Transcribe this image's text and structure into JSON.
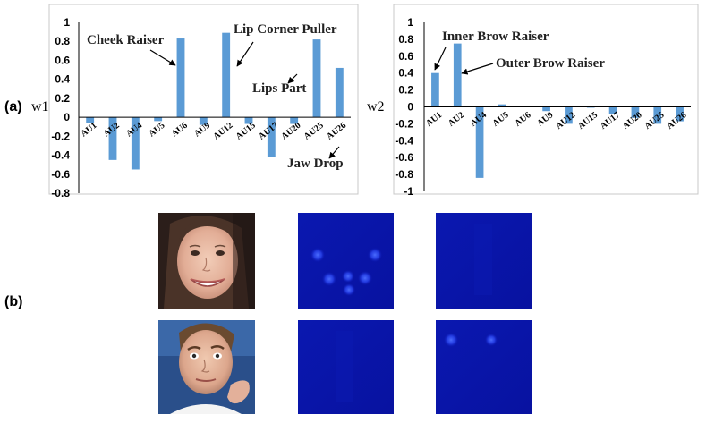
{
  "panel_labels": {
    "a": "(a)",
    "b": "(b)"
  },
  "chart_data": [
    {
      "type": "bar",
      "ylabel": "w1",
      "categories": [
        "AU1",
        "AU2",
        "AU4",
        "AU5",
        "AU6",
        "AU9",
        "AU12",
        "AU15",
        "AU17",
        "AU20",
        "AU25",
        "AU26"
      ],
      "values": [
        -0.06,
        -0.45,
        -0.55,
        -0.04,
        0.83,
        -0.08,
        0.89,
        -0.07,
        -0.42,
        -0.07,
        0.82,
        0.52
      ],
      "ylim": [
        -0.8,
        1
      ],
      "yticks": [
        "1",
        "0.8",
        "0.6",
        "0.4",
        "0.2",
        "0",
        "-0.2",
        "-0.4",
        "-0.6",
        "-0.8"
      ],
      "annotations": [
        {
          "text": "Cheek Raiser",
          "target": "AU6"
        },
        {
          "text": "Lip Corner Puller",
          "target": "AU12"
        },
        {
          "text": "Lips Part",
          "target": "AU25"
        },
        {
          "text": "Jaw Drop",
          "target": "AU26"
        }
      ]
    },
    {
      "type": "bar",
      "ylabel": "w2",
      "categories": [
        "AU1",
        "AU2",
        "AU4",
        "AU5",
        "AU6",
        "AU9",
        "AU12",
        "AU15",
        "AU17",
        "AU20",
        "AU25",
        "AU26"
      ],
      "values": [
        0.4,
        0.75,
        -0.84,
        0.03,
        0.0,
        -0.05,
        -0.2,
        -0.01,
        -0.08,
        -0.13,
        -0.2,
        -0.17
      ],
      "ylim": [
        -1,
        1
      ],
      "yticks": [
        "1",
        "0.8",
        "0.6",
        "0.4",
        "0.2",
        "0",
        "-0.2",
        "-0.4",
        "-0.6",
        "-0.8",
        "-1"
      ],
      "annotations": [
        {
          "text": "Inner Brow Raiser",
          "target": "AU1"
        },
        {
          "text": "Outer Brow Raiser",
          "target": "AU2"
        }
      ]
    }
  ],
  "images": [
    {
      "name": "smiling-face-photo",
      "kind": "photo"
    },
    {
      "name": "heatmap-row1-col1",
      "kind": "heatmap"
    },
    {
      "name": "heatmap-row1-col2",
      "kind": "heatmap"
    },
    {
      "name": "brow-raise-face-photo",
      "kind": "photo"
    },
    {
      "name": "heatmap-row2-col1",
      "kind": "heatmap"
    },
    {
      "name": "heatmap-row2-col2",
      "kind": "heatmap"
    }
  ],
  "colors": {
    "bar": "#5b9bd5",
    "heatmap_bg": "#0a14a8",
    "heatmap_spot": "#3355ff"
  }
}
